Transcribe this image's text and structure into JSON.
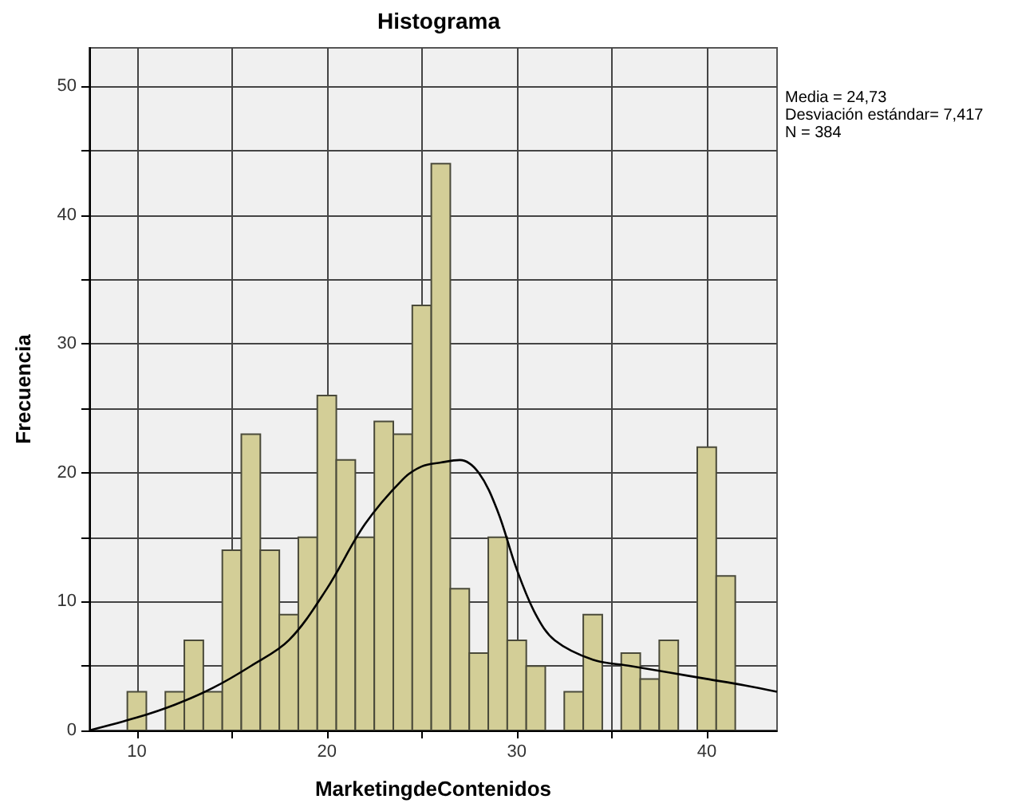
{
  "chart_data": {
    "type": "histogram",
    "title": "Histograma",
    "xlabel": "MarketingdeContenidos",
    "ylabel": "Frecuencia",
    "annotations": [
      "Media = 24,73",
      "Desviación estándar= 7,417",
      "N = 384"
    ],
    "bins": [
      9.5,
      10.5,
      11.5,
      12.5,
      13.5,
      14.5,
      15.5,
      16.5,
      17.5,
      18.5,
      19.5,
      20.5,
      21.5,
      22.5,
      23.5,
      24.5,
      25.5,
      26.5,
      27.5,
      28.5,
      29.5,
      30.5,
      31.5,
      32.5,
      33.5,
      34.5,
      35.5,
      36.5,
      37.5,
      38.5,
      39.5,
      40.5,
      41.5
    ],
    "values": [
      3,
      0,
      3,
      7,
      3,
      14,
      23,
      14,
      9,
      15,
      26,
      21,
      15,
      24,
      23,
      33,
      44,
      11,
      6,
      15,
      7,
      5,
      0,
      3,
      9,
      0,
      6,
      4,
      7,
      0,
      22,
      12
    ],
    "color": "#d3ce97",
    "series": [
      {
        "type": "line",
        "color": "#000000",
        "x": [
          7.5,
          10,
          12,
          14,
          16,
          18,
          20,
          22,
          24,
          25,
          26,
          27,
          28,
          29,
          30,
          31,
          32,
          34,
          36,
          38,
          40,
          42,
          43.7
        ],
        "values": [
          0,
          1,
          2,
          3.3,
          5,
          7,
          11,
          16,
          19.5,
          20.5,
          20.8,
          21,
          20,
          17,
          12.5,
          9,
          7,
          5.5,
          5,
          4.5,
          4,
          3.5,
          3
        ]
      }
    ],
    "xlim": [
      7.5,
      43.7
    ],
    "ylim": [
      0,
      53
    ],
    "xticks": [
      10,
      {
        "value": 15,
        "label": null
      },
      20,
      {
        "value": 25,
        "label": null
      },
      30,
      {
        "value": 35,
        "label": null
      },
      40
    ],
    "yticks": [
      0,
      {
        "value": 5,
        "label": null
      },
      10,
      {
        "value": 15,
        "label": null
      },
      20,
      {
        "value": 25,
        "label": null
      },
      30,
      {
        "value": 35,
        "label": null
      },
      40,
      {
        "value": 45,
        "label": null
      },
      50
    ],
    "grid": true
  }
}
